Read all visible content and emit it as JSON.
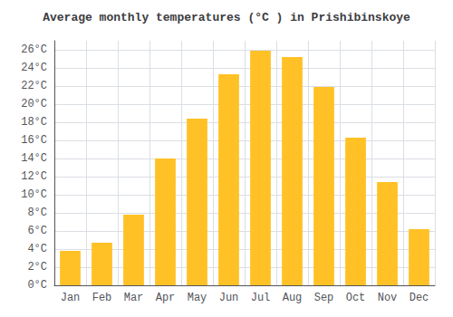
{
  "chart_data": {
    "type": "bar",
    "title": "Average monthly temperatures (°C ) in Prishibinskoye",
    "categories": [
      "Jan",
      "Feb",
      "Mar",
      "Apr",
      "May",
      "Jun",
      "Jul",
      "Aug",
      "Sep",
      "Oct",
      "Nov",
      "Dec"
    ],
    "values": [
      3.8,
      4.7,
      7.8,
      14.0,
      18.4,
      23.3,
      25.9,
      25.2,
      21.9,
      16.3,
      11.4,
      6.2
    ],
    "color": "#FFC125",
    "ylim": [
      0,
      27
    ],
    "yticks": [
      {
        "value": 0,
        "label": "0°C"
      },
      {
        "value": 2,
        "label": "2°C"
      },
      {
        "value": 4,
        "label": "4°C"
      },
      {
        "value": 6,
        "label": "6°C"
      },
      {
        "value": 8,
        "label": "8°C"
      },
      {
        "value": 10,
        "label": "10°C"
      },
      {
        "value": 12,
        "label": "12°C"
      },
      {
        "value": 14,
        "label": "14°C"
      },
      {
        "value": 16,
        "label": "16°C"
      },
      {
        "value": 18,
        "label": "18°C"
      },
      {
        "value": 20,
        "label": "20°C"
      },
      {
        "value": 22,
        "label": "22°C"
      },
      {
        "value": 24,
        "label": "24°C"
      },
      {
        "value": 26,
        "label": "26°C"
      }
    ],
    "grid": true
  }
}
